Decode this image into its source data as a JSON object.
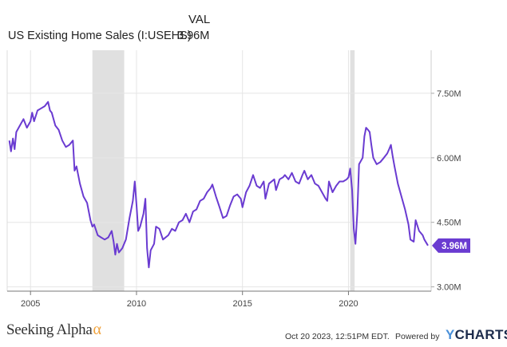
{
  "header": {
    "val_label": "VAL",
    "series_label": "US Existing Home Sales (I:USEHS)",
    "current_value": "3.96M"
  },
  "brand": {
    "name": "Seeking Alpha",
    "alpha_symbol": "α"
  },
  "footer": {
    "timestamp": "Oct 20 2023, 12:51PM EDT.",
    "powered_by": "Powered by",
    "provider_y": "Y",
    "provider_rest": "CHARTS"
  },
  "colors": {
    "line": "#6a3bd1",
    "recession": "#e0e0e0",
    "grid": "#e5e5e5",
    "axis": "#777777"
  },
  "chart_data": {
    "type": "line",
    "title": "",
    "xlabel": "",
    "ylabel": "",
    "x_ticks": [
      {
        "label": "2005",
        "year": 2005
      },
      {
        "label": "2010",
        "year": 2010
      },
      {
        "label": "2015",
        "year": 2015
      },
      {
        "label": "2020",
        "year": 2020
      }
    ],
    "y_ticks": [
      {
        "label": "3.00M",
        "value": 3.0
      },
      {
        "label": "4.50M",
        "value": 4.5
      },
      {
        "label": "6.00M",
        "value": 6.0
      },
      {
        "label": "7.50M",
        "value": 7.5
      }
    ],
    "xlim": [
      2003.9,
      2023.9
    ],
    "ylim": [
      2.9,
      8.5
    ],
    "grid": true,
    "recessions": [
      {
        "start": 2007.92,
        "end": 2009.42
      },
      {
        "start": 2020.08,
        "end": 2020.29
      }
    ],
    "end_label": {
      "text": "3.96M",
      "value": 3.96
    },
    "series": [
      {
        "name": "US Existing Home Sales",
        "points": [
          [
            2004.0,
            6.4
          ],
          [
            2004.08,
            6.15
          ],
          [
            2004.17,
            6.45
          ],
          [
            2004.25,
            6.2
          ],
          [
            2004.33,
            6.6
          ],
          [
            2004.5,
            6.75
          ],
          [
            2004.67,
            6.9
          ],
          [
            2004.83,
            6.7
          ],
          [
            2005.0,
            6.85
          ],
          [
            2005.08,
            7.05
          ],
          [
            2005.17,
            6.85
          ],
          [
            2005.33,
            7.1
          ],
          [
            2005.5,
            7.15
          ],
          [
            2005.67,
            7.2
          ],
          [
            2005.83,
            7.3
          ],
          [
            2005.92,
            7.1
          ],
          [
            2006.0,
            7.05
          ],
          [
            2006.17,
            6.75
          ],
          [
            2006.33,
            6.65
          ],
          [
            2006.5,
            6.4
          ],
          [
            2006.67,
            6.25
          ],
          [
            2006.83,
            6.3
          ],
          [
            2007.0,
            6.4
          ],
          [
            2007.08,
            5.7
          ],
          [
            2007.17,
            5.8
          ],
          [
            2007.33,
            5.4
          ],
          [
            2007.5,
            5.1
          ],
          [
            2007.67,
            4.95
          ],
          [
            2007.83,
            4.55
          ],
          [
            2007.92,
            4.4
          ],
          [
            2008.0,
            4.45
          ],
          [
            2008.17,
            4.2
          ],
          [
            2008.33,
            4.15
          ],
          [
            2008.5,
            4.1
          ],
          [
            2008.67,
            4.15
          ],
          [
            2008.83,
            4.3
          ],
          [
            2008.92,
            4.05
          ],
          [
            2009.0,
            3.75
          ],
          [
            2009.08,
            4.0
          ],
          [
            2009.17,
            3.8
          ],
          [
            2009.33,
            3.9
          ],
          [
            2009.5,
            4.1
          ],
          [
            2009.67,
            4.6
          ],
          [
            2009.83,
            5.0
          ],
          [
            2009.92,
            5.45
          ],
          [
            2010.0,
            4.9
          ],
          [
            2010.08,
            4.3
          ],
          [
            2010.17,
            4.4
          ],
          [
            2010.33,
            4.7
          ],
          [
            2010.42,
            5.05
          ],
          [
            2010.5,
            3.9
          ],
          [
            2010.58,
            3.45
          ],
          [
            2010.67,
            3.85
          ],
          [
            2010.83,
            4.0
          ],
          [
            2010.92,
            4.4
          ],
          [
            2011.08,
            4.35
          ],
          [
            2011.25,
            4.1
          ],
          [
            2011.5,
            4.2
          ],
          [
            2011.67,
            4.35
          ],
          [
            2011.83,
            4.3
          ],
          [
            2012.0,
            4.5
          ],
          [
            2012.17,
            4.55
          ],
          [
            2012.33,
            4.7
          ],
          [
            2012.5,
            4.5
          ],
          [
            2012.67,
            4.75
          ],
          [
            2012.83,
            4.8
          ],
          [
            2013.0,
            5.0
          ],
          [
            2013.17,
            5.05
          ],
          [
            2013.33,
            5.2
          ],
          [
            2013.5,
            5.3
          ],
          [
            2013.58,
            5.38
          ],
          [
            2013.75,
            5.1
          ],
          [
            2013.92,
            4.85
          ],
          [
            2014.08,
            4.6
          ],
          [
            2014.25,
            4.65
          ],
          [
            2014.42,
            4.9
          ],
          [
            2014.58,
            5.1
          ],
          [
            2014.75,
            5.15
          ],
          [
            2014.92,
            5.05
          ],
          [
            2015.0,
            4.85
          ],
          [
            2015.17,
            5.2
          ],
          [
            2015.33,
            5.35
          ],
          [
            2015.5,
            5.6
          ],
          [
            2015.67,
            5.35
          ],
          [
            2015.83,
            5.3
          ],
          [
            2016.0,
            5.45
          ],
          [
            2016.08,
            5.05
          ],
          [
            2016.25,
            5.4
          ],
          [
            2016.5,
            5.5
          ],
          [
            2016.58,
            5.25
          ],
          [
            2016.75,
            5.5
          ],
          [
            2016.92,
            5.55
          ],
          [
            2017.0,
            5.6
          ],
          [
            2017.17,
            5.5
          ],
          [
            2017.33,
            5.65
          ],
          [
            2017.5,
            5.45
          ],
          [
            2017.67,
            5.4
          ],
          [
            2017.83,
            5.6
          ],
          [
            2017.92,
            5.7
          ],
          [
            2018.08,
            5.5
          ],
          [
            2018.25,
            5.6
          ],
          [
            2018.42,
            5.4
          ],
          [
            2018.58,
            5.35
          ],
          [
            2018.75,
            5.2
          ],
          [
            2018.92,
            5.05
          ],
          [
            2019.0,
            5.0
          ],
          [
            2019.08,
            5.45
          ],
          [
            2019.25,
            5.2
          ],
          [
            2019.42,
            5.35
          ],
          [
            2019.58,
            5.45
          ],
          [
            2019.75,
            5.45
          ],
          [
            2019.92,
            5.5
          ],
          [
            2020.0,
            5.55
          ],
          [
            2020.08,
            5.75
          ],
          [
            2020.17,
            5.25
          ],
          [
            2020.25,
            4.35
          ],
          [
            2020.33,
            4.0
          ],
          [
            2020.42,
            4.75
          ],
          [
            2020.5,
            5.85
          ],
          [
            2020.67,
            6.0
          ],
          [
            2020.75,
            6.5
          ],
          [
            2020.83,
            6.7
          ],
          [
            2020.92,
            6.65
          ],
          [
            2021.0,
            6.6
          ],
          [
            2021.08,
            6.3
          ],
          [
            2021.17,
            6.0
          ],
          [
            2021.33,
            5.85
          ],
          [
            2021.5,
            5.9
          ],
          [
            2021.67,
            6.0
          ],
          [
            2021.83,
            6.1
          ],
          [
            2021.92,
            6.2
          ],
          [
            2022.0,
            6.3
          ],
          [
            2022.08,
            6.05
          ],
          [
            2022.17,
            5.8
          ],
          [
            2022.33,
            5.4
          ],
          [
            2022.5,
            5.1
          ],
          [
            2022.67,
            4.8
          ],
          [
            2022.83,
            4.45
          ],
          [
            2022.92,
            4.1
          ],
          [
            2023.08,
            4.05
          ],
          [
            2023.17,
            4.55
          ],
          [
            2023.33,
            4.3
          ],
          [
            2023.5,
            4.2
          ],
          [
            2023.58,
            4.1
          ],
          [
            2023.75,
            3.96
          ]
        ]
      }
    ]
  }
}
